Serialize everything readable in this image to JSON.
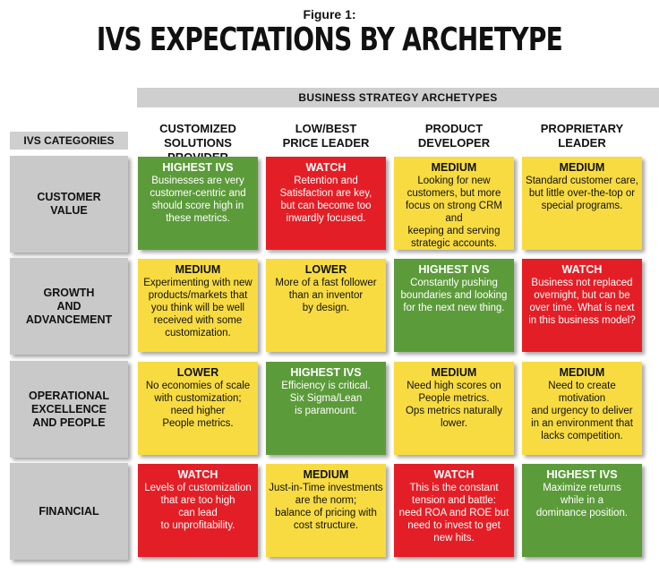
{
  "figure_label": "Figure 1:",
  "title": "IVS EXPECTATIONS BY ARCHETYPE",
  "strategy_header": "BUSINESS STRATEGY ARCHETYPES",
  "categories_header": "IVS CATEGORIES",
  "columns": [
    "CUSTOMIZED SOLUTIONS\nPROVIDER",
    "LOW/BEST\nPRICE LEADER",
    "PRODUCT\nDEVELOPER",
    "PROPRIETARY\nLEADER"
  ],
  "rows": [
    {
      "label": "CUSTOMER\nVALUE",
      "cells": [
        {
          "level": "HIGHEST IVS",
          "color": "green",
          "text": "Businesses are very\ncustomer-centric and\nshould score high in\nthese metrics."
        },
        {
          "level": "WATCH",
          "color": "red",
          "text": "Retention and\nSatisfaction are key,\nbut can become too\ninwardly focused."
        },
        {
          "level": "MEDIUM",
          "color": "yellow",
          "text": "Looking for new\ncustomers, but more\nfocus on strong CRM and\nkeeping and serving\nstrategic accounts."
        },
        {
          "level": "MEDIUM",
          "color": "yellow",
          "text": "Standard customer care,\nbut little over-the-top or\nspecial programs."
        }
      ]
    },
    {
      "label": "GROWTH\nAND\nADVANCEMENT",
      "cells": [
        {
          "level": "MEDIUM",
          "color": "yellow",
          "text": "Experimenting with new\nproducts/markets that\nyou think will be well\nreceived with some\ncustomization."
        },
        {
          "level": "LOWER",
          "color": "yellow",
          "text": "More of a fast follower\nthan an inventor\nby design."
        },
        {
          "level": "HIGHEST IVS",
          "color": "green",
          "text": "Constantly pushing\nboundaries and looking\nfor the next new thing."
        },
        {
          "level": "WATCH",
          "color": "red",
          "text": "Business not replaced\novernight, but can be\nover time. What is next\nin this business model?"
        }
      ]
    },
    {
      "label": "OPERATIONAL\nEXCELLENCE\nAND PEOPLE",
      "cells": [
        {
          "level": "LOWER",
          "color": "yellow",
          "text": "No economies of scale\nwith customization;\nneed higher\nPeople metrics."
        },
        {
          "level": "HIGHEST IVS",
          "color": "green",
          "text": "Efficiency is critical.\nSix Sigma/Lean\nis paramount."
        },
        {
          "level": "MEDIUM",
          "color": "yellow",
          "text": "Need high scores on\nPeople metrics.\nOps metrics naturally\nlower."
        },
        {
          "level": "MEDIUM",
          "color": "yellow",
          "text": "Need to create motivation\nand urgency to deliver\nin an environment that\nlacks competition."
        }
      ]
    },
    {
      "label": "FINANCIAL",
      "cells": [
        {
          "level": "WATCH",
          "color": "red",
          "text": "Levels of customization\nthat are too high\ncan lead\nto unprofitability."
        },
        {
          "level": "MEDIUM",
          "color": "yellow",
          "text": "Just-in-Time investments\nare the norm;\nbalance of pricing with\ncost structure."
        },
        {
          "level": "WATCH",
          "color": "red",
          "text": "This is the constant\ntension and battle:\nneed ROA and ROE but\nneed to invest to get\nnew hits."
        },
        {
          "level": "HIGHEST IVS",
          "color": "green",
          "text": "Maximize returns\nwhile in a\ndominance position."
        }
      ]
    }
  ]
}
